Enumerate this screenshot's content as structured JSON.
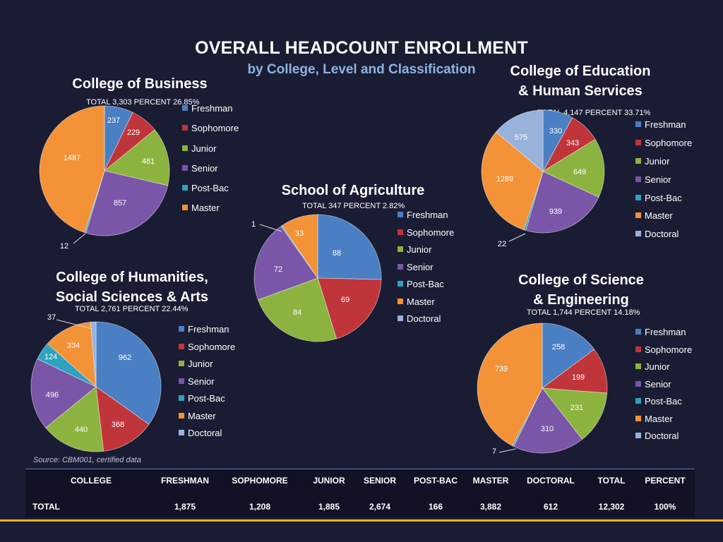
{
  "title": "OVERALL HEADCOUNT ENROLLMENT",
  "subtitle": "by College, Level and Classification",
  "colors": {
    "Freshman": "#4a7fc3",
    "Sophomore": "#c0353a",
    "Junior": "#8cb33f",
    "Senior": "#7a56a8",
    "Post-Bac": "#2ea3bf",
    "Master": "#f39237",
    "Doctoral": "#98b2dc"
  },
  "chart_data": [
    {
      "type": "pie",
      "title": "College of Business",
      "total_line": "TOTAL 3,303 PERCENT 26.85%",
      "categories": [
        "Freshman",
        "Sophomore",
        "Junior",
        "Senior",
        "Post-Bac",
        "Master"
      ],
      "values": [
        237,
        229,
        481,
        857,
        12,
        1487
      ],
      "legend": "right"
    },
    {
      "type": "pie",
      "title": "College of Education & Human Services",
      "title_lines": [
        "College of Education",
        "& Human Services"
      ],
      "total_line": "TOTAL 4,147   PERCENT 33.71%",
      "categories": [
        "Freshman",
        "Sophomore",
        "Junior",
        "Senior",
        "Post-Bac",
        "Master",
        "Doctoral"
      ],
      "values": [
        330,
        343,
        649,
        939,
        22,
        1289,
        575
      ],
      "legend": "right"
    },
    {
      "type": "pie",
      "title": "School of Agriculture",
      "total_line": "TOTAL 347   PERCENT 2.82%",
      "categories": [
        "Freshman",
        "Sophomore",
        "Junior",
        "Senior",
        "Post-Bac",
        "Master",
        "Doctoral"
      ],
      "values": [
        88,
        69,
        84,
        72,
        1,
        33,
        0
      ],
      "legend": "right"
    },
    {
      "type": "pie",
      "title": "College of Humanities, Social Sciences & Arts",
      "title_lines": [
        "College of Humanities,",
        "Social Sciences & Arts"
      ],
      "total_line": "TOTAL 2,761   PERCENT 22.44%",
      "categories": [
        "Freshman",
        "Sophomore",
        "Junior",
        "Senior",
        "Post-Bac",
        "Master",
        "Doctoral"
      ],
      "values": [
        962,
        368,
        440,
        496,
        124,
        334,
        37
      ],
      "legend": "right"
    },
    {
      "type": "pie",
      "title": "College of Science & Engineering",
      "title_lines": [
        "College of Science",
        "& Engineering"
      ],
      "total_line": "TOTAL 1,744   PERCENT 14.18%",
      "categories": [
        "Freshman",
        "Sophomore",
        "Junior",
        "Senior",
        "Post-Bac",
        "Master",
        "Doctoral"
      ],
      "values": [
        258,
        199,
        231,
        310,
        7,
        739,
        0
      ],
      "legend": "right"
    }
  ],
  "source": "Source: CBM001, certified data",
  "table": {
    "headers": [
      "COLLEGE",
      "FRESHMAN",
      "SOPHOMORE",
      "JUNIOR",
      "SENIOR",
      "POST-BAC",
      "MASTER",
      "DOCTORAL",
      "TOTAL",
      "PERCENT"
    ],
    "rows": [
      [
        "TOTAL",
        "1,875",
        "1,208",
        "1,885",
        "2,674",
        "166",
        "3,882",
        "612",
        "12,302",
        "100%"
      ]
    ]
  }
}
